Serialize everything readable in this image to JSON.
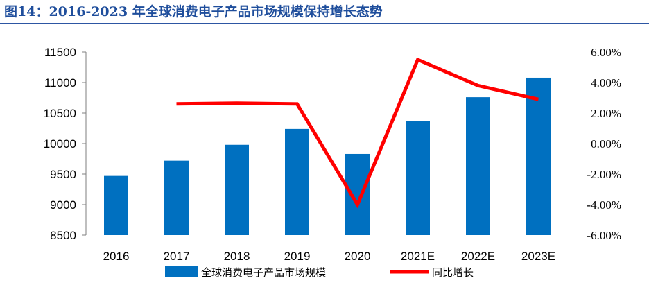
{
  "title": "图14：2016-2023 年全球消费电子产品市场规模保持增长态势",
  "chart_data": {
    "type": "bar",
    "categories": [
      "2016",
      "2017",
      "2018",
      "2019",
      "2020",
      "2021E",
      "2022E",
      "2023E"
    ],
    "series": [
      {
        "name": "全球消费电子产品市场规模",
        "type": "bar",
        "axis": "left",
        "values": [
          9470,
          9720,
          9980,
          10240,
          9830,
          10370,
          10760,
          11080
        ],
        "color": "#0070c0"
      },
      {
        "name": "同比增长",
        "type": "line",
        "axis": "right",
        "values": [
          null,
          2.6,
          2.65,
          2.6,
          -4.0,
          5.5,
          3.8,
          2.9
        ],
        "color": "#ff0000"
      }
    ],
    "y_left": {
      "min": 8500,
      "max": 11500,
      "step": 500,
      "ticks": [
        "8500",
        "9000",
        "9500",
        "10000",
        "10500",
        "11000",
        "11500"
      ]
    },
    "y_right": {
      "min": -6,
      "max": 6,
      "step": 2,
      "ticks": [
        "-6.00%",
        "-4.00%",
        "-2.00%",
        "0.00%",
        "2.00%",
        "4.00%",
        "6.00%"
      ]
    },
    "grid": false,
    "legend": "bottom"
  }
}
